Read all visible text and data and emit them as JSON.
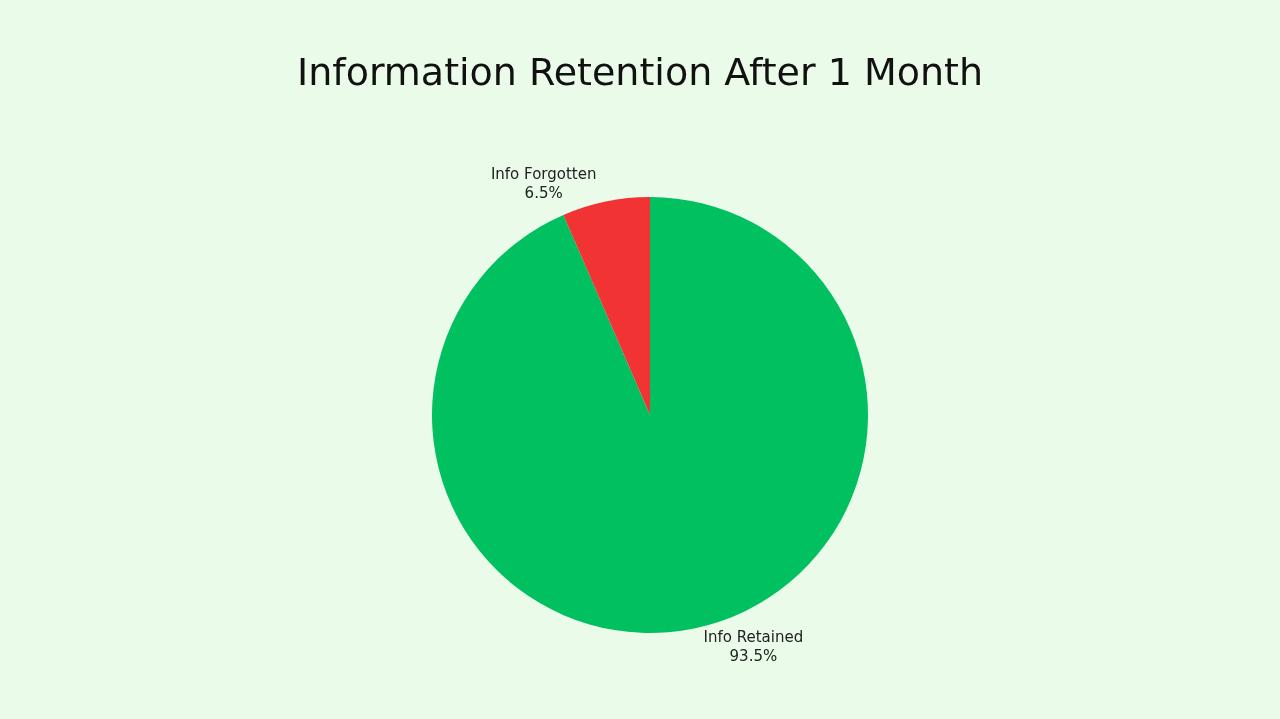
{
  "chart_data": {
    "type": "pie",
    "title": "Information Retention After 1 Month",
    "categories": [
      "Info Retained",
      "Info Forgotten"
    ],
    "values": [
      93.5,
      6.5
    ],
    "value_labels": [
      "93.5%",
      "6.5%"
    ],
    "colors": [
      "#00c060",
      "#f23333"
    ],
    "legend": false
  }
}
